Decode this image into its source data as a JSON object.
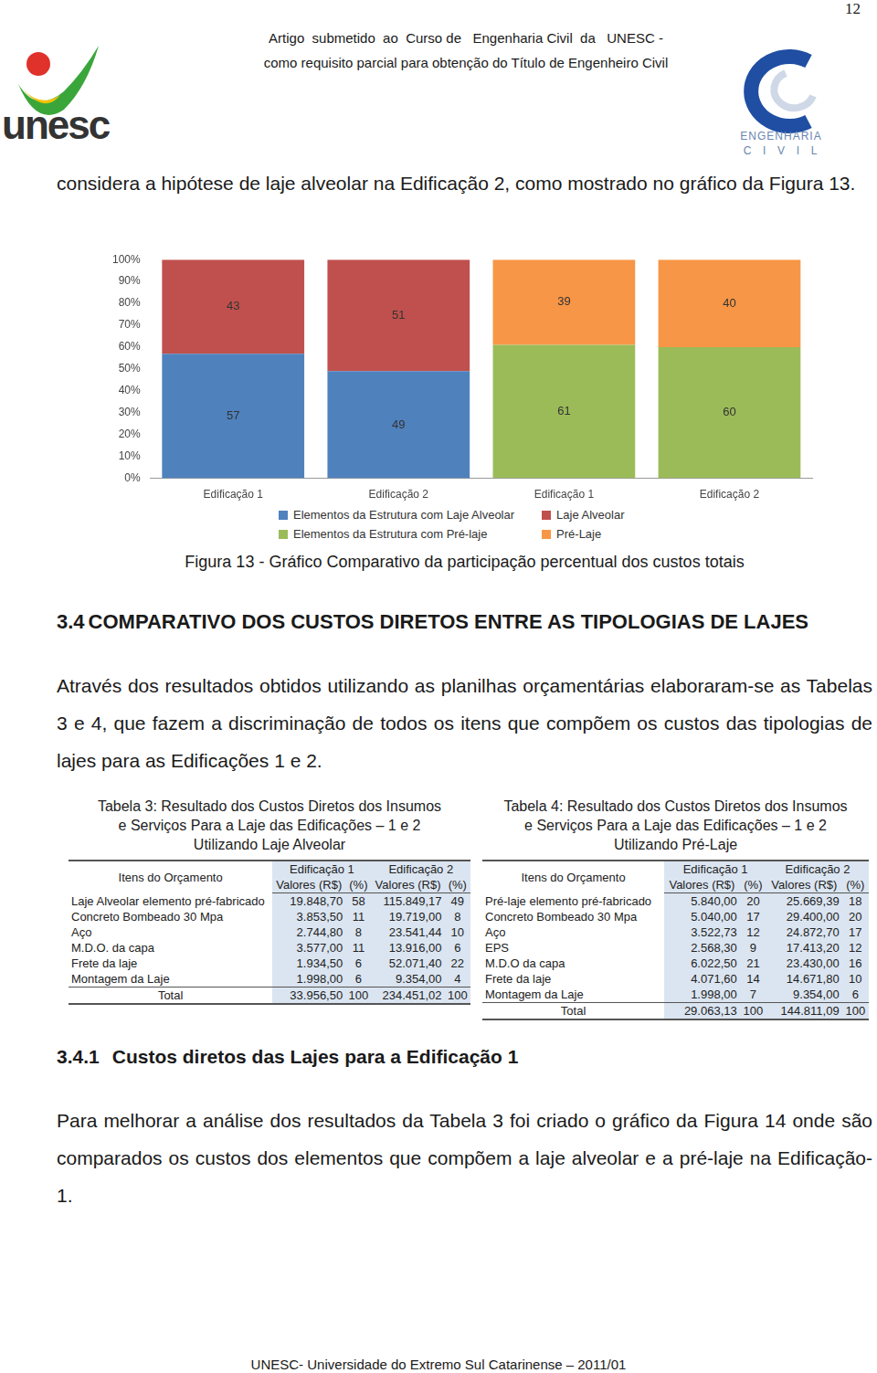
{
  "header": {
    "lines": [
      "Artigo  submetido  ao  Curso de   Engenharia Civil  da   UNESC -",
      "como requisito parcial para obtenção do Título de Engenheiro Civil"
    ],
    "page_number": "12",
    "logo_left": "unesc",
    "logo_right": [
      "ENGENHARIA",
      "C  I  V  I  L"
    ]
  },
  "intro_text": "considera a hipótese de laje alveolar na Edificação 2, como mostrado no gráfico da Figura 13.",
  "chart_data": {
    "type": "bar",
    "stacked": true,
    "data_labels": true,
    "grid": false,
    "legend": "bottom",
    "categories": [
      "Edificação 1",
      "Edificação 2",
      "Edificação 1",
      "Edificação 2"
    ],
    "series": [
      {
        "name": "Elementos da Estrutura com Laje Alveolar",
        "color": "#4f81bd",
        "values": [
          57,
          49,
          null,
          null
        ]
      },
      {
        "name": "Laje Alveolar",
        "color": "#c0504d",
        "values": [
          43,
          51,
          null,
          null
        ]
      },
      {
        "name": "Elementos da Estrutura com Pré-laje",
        "color": "#9bbb59",
        "values": [
          null,
          null,
          61,
          60
        ]
      },
      {
        "name": "Pré-Laje",
        "color": "#f79646",
        "values": [
          null,
          null,
          39,
          40
        ]
      }
    ],
    "ylim": [
      0,
      100
    ],
    "yticks": [
      {
        "value": 0,
        "label": "0%"
      },
      {
        "value": 10,
        "label": "10%"
      },
      {
        "value": 20,
        "label": "20%"
      },
      {
        "value": 30,
        "label": "30%"
      },
      {
        "value": 40,
        "label": "40%"
      },
      {
        "value": 50,
        "label": "50%"
      },
      {
        "value": 60,
        "label": "60%"
      },
      {
        "value": 70,
        "label": "70%"
      },
      {
        "value": 80,
        "label": "80%"
      },
      {
        "value": 90,
        "label": "90%"
      },
      {
        "value": 100,
        "label": "100%"
      }
    ]
  },
  "figure_caption": "Figura 13 - Gráfico Comparativo da participação percentual dos custos totais",
  "section": {
    "number": "3.4",
    "title": "COMPARATIVO DOS CUSTOS DIRETOS ENTRE AS TIPOLOGIAS DE LAJES"
  },
  "section_text": "Através dos resultados obtidos utilizando as planilhas orçamentárias elaboraram-se as Tabelas 3 e 4, que fazem a discriminação de todos os itens que compõem os custos das tipologias de lajes para as Edificações 1 e 2.",
  "tables": [
    {
      "title": [
        "Tabela 3: Resultado dos Custos Diretos dos Insumos",
        "e Serviços Para a Laje das Edificações – 1 e 2",
        "Utilizando Laje Alveolar"
      ],
      "header": [
        "Itens do Orçamento",
        "Edificação 1",
        "Edificação 2"
      ],
      "subheader": [
        "Valores (R$)",
        "(%)",
        "Valores (R$)",
        "(%)"
      ],
      "rows": [
        [
          "Laje Alveolar elemento pré-fabricado",
          "19.848,70",
          "58",
          "115.849,17",
          "49"
        ],
        [
          "Concreto Bombeado 30 Mpa",
          "3.853,50",
          "11",
          "19.719,00",
          "8"
        ],
        [
          "Aço",
          "2.744,80",
          "8",
          "23.541,44",
          "10"
        ],
        [
          "M.D.O. da capa",
          "3.577,00",
          "11",
          "13.916,00",
          "6"
        ],
        [
          "Frete da laje",
          "1.934,50",
          "6",
          "52.071,40",
          "22"
        ],
        [
          "Montagem da Laje",
          "1.998,00",
          "6",
          "9.354,00",
          "4"
        ]
      ],
      "total": [
        "Total",
        "33.956,50",
        "100",
        "234.451,02",
        "100"
      ]
    },
    {
      "title": [
        "Tabela 4: Resultado dos Custos Diretos dos Insumos",
        "e Serviços Para a Laje das Edificações – 1 e 2",
        "Utilizando Pré-Laje"
      ],
      "header": [
        "Itens do Orçamento",
        "Edificação 1",
        "Edificação 2"
      ],
      "subheader": [
        "Valores (R$)",
        "(%)",
        "Valores (R$)",
        "(%)"
      ],
      "rows": [
        [
          "Pré-laje  elemento pré-fabricado",
          "5.840,00",
          "20",
          "25.669,39",
          "18"
        ],
        [
          "Concreto Bombeado 30 Mpa",
          "5.040,00",
          "17",
          "29.400,00",
          "20"
        ],
        [
          "Aço",
          "3.522,73",
          "12",
          "24.872,70",
          "17"
        ],
        [
          "EPS",
          "2.568,30",
          "9",
          "17.413,20",
          "12"
        ],
        [
          "M.D.O da capa",
          "6.022,50",
          "21",
          "23.430,00",
          "16"
        ],
        [
          "Frete da laje",
          "4.071,60",
          "14",
          "14.671,80",
          "10"
        ],
        [
          "Montagem da Laje",
          "1.998,00",
          "7",
          "9.354,00",
          "6"
        ]
      ],
      "total": [
        "Total",
        "29.063,13",
        "100",
        "144.811,09",
        "100"
      ]
    }
  ],
  "subsection": {
    "number": "3.4.1",
    "title": "Custos diretos das Lajes para a Edificação 1"
  },
  "subsection_text": "Para melhorar a análise dos resultados da Tabela 3 foi criado o gráfico da Figura 14 onde são comparados os custos dos elementos que compõem a laje alveolar e a pré-laje na Edificação-1.",
  "footer": "UNESC- Universidade do Extremo Sul Catarinense – 2011/01"
}
